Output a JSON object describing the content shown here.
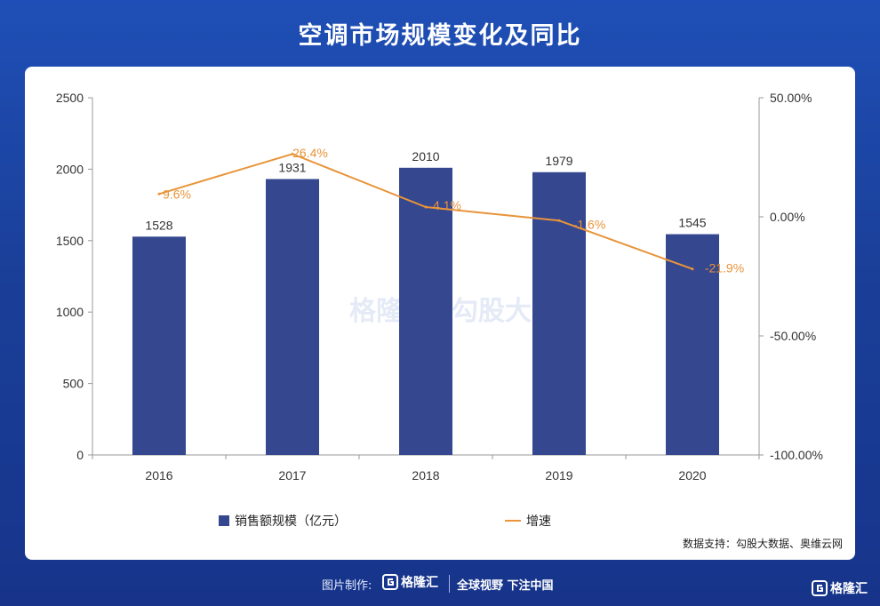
{
  "page": {
    "title": "空调市场规模变化及同比",
    "source": "数据支持：勾股大数据、奥维云网"
  },
  "footer": {
    "credit": "图片制作:",
    "logo_text": "格隆汇",
    "slogan": "全球视野 下注中国"
  },
  "corner_logo": {
    "text": "格隆汇"
  },
  "watermark": {
    "text1": "格隆汇",
    "text2": "勾股大数据"
  },
  "colors": {
    "bar": "#35478f",
    "line": "#e8943a",
    "label_line": "#e8943a",
    "background": "#1f4fb6"
  },
  "chart_data": {
    "type": "bar",
    "categories": [
      "2016",
      "2017",
      "2018",
      "2019",
      "2020"
    ],
    "series": [
      {
        "name": "销售额规模（亿元）",
        "type": "bar",
        "axis": "left",
        "values": [
          1528,
          1931,
          2010,
          1979,
          1545
        ],
        "labels": [
          "1528",
          "1931",
          "2010",
          "1979",
          "1545"
        ]
      },
      {
        "name": "增速",
        "type": "line",
        "axis": "right",
        "values": [
          9.6,
          26.4,
          4.1,
          -1.6,
          -21.9
        ],
        "labels": [
          "9.6%",
          "26.4%",
          "4.1%",
          "-1.6%",
          "-21.9%"
        ]
      }
    ],
    "y_left": {
      "min": 0,
      "max": 2500,
      "ticks": [
        "0",
        "500",
        "1000",
        "1500",
        "2000",
        "2500"
      ]
    },
    "y_right": {
      "min": -100,
      "max": 50,
      "ticks": [
        "-100.00%",
        "-50.00%",
        "0.00%",
        "50.00%"
      ]
    },
    "legend": {
      "placement": "bottom"
    },
    "grid": false
  }
}
